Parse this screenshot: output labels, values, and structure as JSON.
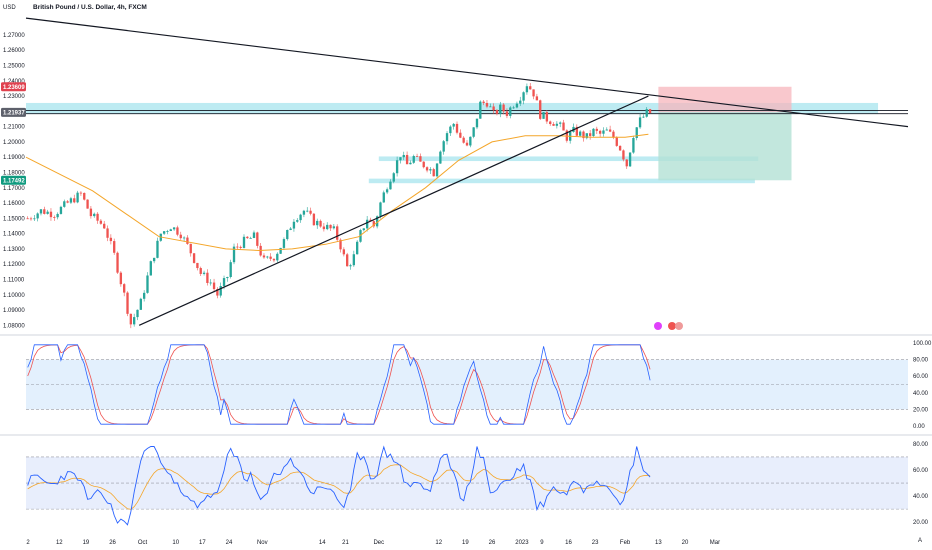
{
  "header": {
    "currency": "USD",
    "title": "British Pound / U.S. Dollar, 4h, FXCM"
  },
  "colors": {
    "bull": "#26a69a",
    "bear": "#ef5350",
    "ma": "#f4a62a",
    "stoch_k": "#2962ff",
    "stoch_d": "#ef5350",
    "rsi": "#2962ff",
    "rsi_ma": "#f4a62a",
    "zone": "#b2e7f0",
    "band": "#e3f0fd",
    "tag_red": "#e0424f",
    "tag_gray": "#5d606b",
    "tag_green": "#0f9a7f"
  },
  "price_tags": [
    {
      "label": "1.23609",
      "value": 1.23609,
      "color": "tag_red"
    },
    {
      "label": "1.21937",
      "value": 1.21937,
      "color": "tag_gray"
    },
    {
      "label": "1.17492",
      "value": 1.17492,
      "color": "tag_green"
    }
  ],
  "chart_data": [
    {
      "type": "candlestick",
      "title": "British Pound / U.S. Dollar, 4h, FXCM",
      "ylabel": "USD",
      "ylim": [
        1.075,
        1.285
      ],
      "y_ticks": [
        "1.27000",
        "1.26000",
        "1.25000",
        "1.24000",
        "1.23000",
        "1.22000",
        "1.21000",
        "1.20000",
        "1.19000",
        "1.18000",
        "1.17000",
        "1.16000",
        "1.15000",
        "1.14000",
        "1.13000",
        "1.12000",
        "1.11000",
        "1.10000",
        "1.09000",
        "1.08000"
      ],
      "x_ticks": [
        "2",
        "12",
        "19",
        "26",
        "Oct",
        "10",
        "17",
        "24",
        "Nov",
        "14",
        "21",
        "Dec",
        "12",
        "19",
        "26",
        "2023",
        "9",
        "16",
        "23",
        "Feb",
        "13",
        "20",
        "Mar"
      ],
      "close_path": [
        [
          0,
          1.15
        ],
        [
          4,
          1.155
        ],
        [
          8,
          1.153
        ],
        [
          12,
          1.16
        ],
        [
          16,
          1.166
        ],
        [
          19,
          1.152
        ],
        [
          23,
          1.145
        ],
        [
          26,
          1.126
        ],
        [
          29,
          1.1
        ],
        [
          31,
          1.081
        ],
        [
          34,
          1.095
        ],
        [
          37,
          1.12
        ],
        [
          40,
          1.14
        ],
        [
          43,
          1.145
        ],
        [
          46,
          1.14
        ],
        [
          49,
          1.128
        ],
        [
          52,
          1.114
        ],
        [
          55,
          1.108
        ],
        [
          57,
          1.1
        ],
        [
          60,
          1.112
        ],
        [
          62,
          1.13
        ],
        [
          65,
          1.135
        ],
        [
          68,
          1.138
        ],
        [
          71,
          1.122
        ],
        [
          74,
          1.125
        ],
        [
          77,
          1.135
        ],
        [
          80,
          1.15
        ],
        [
          83,
          1.155
        ],
        [
          86,
          1.148
        ],
        [
          89,
          1.145
        ],
        [
          92,
          1.142
        ],
        [
          94,
          1.132
        ],
        [
          96,
          1.118
        ],
        [
          98,
          1.125
        ],
        [
          100,
          1.14
        ],
        [
          102,
          1.15
        ],
        [
          104,
          1.145
        ],
        [
          106,
          1.16
        ],
        [
          108,
          1.172
        ],
        [
          110,
          1.182
        ],
        [
          112,
          1.192
        ],
        [
          114,
          1.185
        ],
        [
          116,
          1.19
        ],
        [
          118,
          1.186
        ],
        [
          120,
          1.184
        ],
        [
          122,
          1.18
        ],
        [
          124,
          1.196
        ],
        [
          126,
          1.206
        ],
        [
          128,
          1.212
        ],
        [
          130,
          1.203
        ],
        [
          132,
          1.196
        ],
        [
          134,
          1.208
        ],
        [
          136,
          1.225
        ],
        [
          138,
          1.226
        ],
        [
          140,
          1.218
        ],
        [
          142,
          1.222
        ],
        [
          144,
          1.219
        ],
        [
          146,
          1.225
        ],
        [
          148,
          1.23
        ],
        [
          150,
          1.238
        ],
        [
          152,
          1.232
        ],
        [
          154,
          1.218
        ],
        [
          156,
          1.215
        ],
        [
          158,
          1.213
        ],
        [
          160,
          1.21
        ],
        [
          162,
          1.203
        ],
        [
          164,
          1.207
        ],
        [
          166,
          1.205
        ],
        [
          168,
          1.203
        ],
        [
          170,
          1.207
        ],
        [
          172,
          1.205
        ],
        [
          174,
          1.207
        ],
        [
          176,
          1.203
        ],
        [
          178,
          1.196
        ],
        [
          180,
          1.185
        ],
        [
          182,
          1.205
        ],
        [
          184,
          1.214
        ],
        [
          186,
          1.219
        ],
        [
          187,
          1.219
        ]
      ],
      "moving_average": [
        [
          0,
          1.19
        ],
        [
          20,
          1.168
        ],
        [
          40,
          1.138
        ],
        [
          60,
          1.13
        ],
        [
          70,
          1.129
        ],
        [
          80,
          1.13
        ],
        [
          90,
          1.133
        ],
        [
          100,
          1.138
        ],
        [
          110,
          1.155
        ],
        [
          120,
          1.17
        ],
        [
          130,
          1.188
        ],
        [
          140,
          1.2
        ],
        [
          150,
          1.204
        ],
        [
          160,
          1.204
        ],
        [
          170,
          1.203
        ],
        [
          180,
          1.203
        ],
        [
          187,
          1.205
        ]
      ],
      "trendlines": [
        {
          "name": "descending",
          "from": [
            0,
            1.281
          ],
          "to": [
            265,
            1.21
          ]
        },
        {
          "name": "ascending",
          "from": [
            34,
            1.08
          ],
          "to": [
            187,
            1.23
          ]
        }
      ],
      "horizontal_lines": [
        1.2205,
        1.2185
      ],
      "zones": [
        {
          "name": "resistance-zone",
          "y1": 1.2185,
          "y2": 1.2255,
          "x1": 0,
          "x2": 256
        },
        {
          "name": "support-zone-upper",
          "y1": 1.1875,
          "y2": 1.1905,
          "x1": 106,
          "x2": 220
        },
        {
          "name": "support-zone-lower",
          "y1": 1.173,
          "y2": 1.176,
          "x1": 103,
          "x2": 219
        }
      ],
      "position": {
        "entry": 1.21937,
        "stop": 1.23609,
        "target": 1.17492,
        "x1": 190,
        "x2": 230
      }
    },
    {
      "type": "line",
      "name": "stochastic",
      "ylim": [
        -5,
        105
      ],
      "y_ticks": [
        "100.00",
        "80.00",
        "60.00",
        "40.00",
        "20.00",
        "0.00"
      ],
      "band": [
        20,
        80
      ]
    },
    {
      "type": "line",
      "name": "rsi",
      "ylim": [
        14,
        83
      ],
      "y_ticks": [
        "80.00",
        "60.00",
        "40.00",
        "20.00"
      ],
      "band": [
        30,
        70
      ]
    }
  ]
}
